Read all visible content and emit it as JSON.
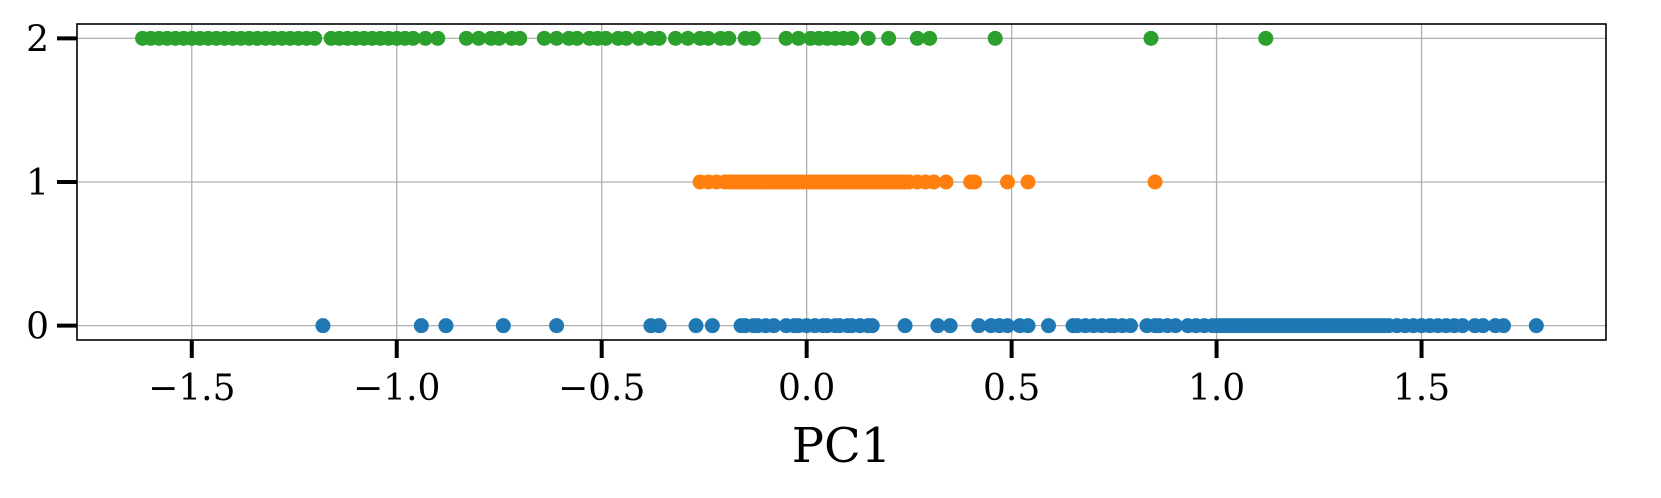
{
  "chart_data": {
    "type": "scatter",
    "title": "",
    "xlabel": "PC1",
    "ylabel": "",
    "xlim": [
      -1.78,
      1.95
    ],
    "ylim": [
      -0.1,
      2.1
    ],
    "grid": true,
    "xticks": [
      -1.5,
      -1.0,
      -0.5,
      0.0,
      0.5,
      1.0,
      1.5
    ],
    "xtick_labels": [
      "−1.5",
      "−1.0",
      "−0.5",
      "0.0",
      "0.5",
      "1.0",
      "1.5"
    ],
    "yticks": [
      0,
      1,
      2
    ],
    "ytick_labels": [
      "0",
      "1",
      "2"
    ],
    "series": [
      {
        "color": "#1f77b4",
        "y": 0,
        "x": [
          -1.18,
          -0.94,
          -0.88,
          -0.74,
          -0.61,
          -0.38,
          -0.36,
          -0.27,
          -0.23,
          -0.16,
          -0.15,
          -0.13,
          -0.12,
          -0.1,
          -0.08,
          -0.05,
          -0.03,
          -0.02,
          0.0,
          0.02,
          0.04,
          0.05,
          0.07,
          0.08,
          0.1,
          0.11,
          0.13,
          0.15,
          0.16,
          0.24,
          0.32,
          0.35,
          0.42,
          0.45,
          0.47,
          0.49,
          0.52,
          0.54,
          0.59,
          0.65,
          0.66,
          0.68,
          0.7,
          0.72,
          0.74,
          0.75,
          0.77,
          0.79,
          0.83,
          0.85,
          0.86,
          0.88,
          0.9,
          0.93,
          0.95,
          0.97,
          0.99,
          1.0,
          1.01,
          1.02,
          1.03,
          1.04,
          1.05,
          1.06,
          1.07,
          1.08,
          1.09,
          1.1,
          1.11,
          1.12,
          1.13,
          1.14,
          1.15,
          1.16,
          1.17,
          1.18,
          1.19,
          1.2,
          1.21,
          1.22,
          1.23,
          1.24,
          1.25,
          1.26,
          1.27,
          1.28,
          1.29,
          1.3,
          1.31,
          1.32,
          1.33,
          1.34,
          1.35,
          1.36,
          1.37,
          1.38,
          1.39,
          1.4,
          1.41,
          1.42,
          1.44,
          1.46,
          1.48,
          1.5,
          1.52,
          1.54,
          1.56,
          1.58,
          1.6,
          1.63,
          1.65,
          1.68,
          1.7,
          1.78
        ]
      },
      {
        "color": "#ff7f0e",
        "y": 1,
        "x": [
          -0.26,
          -0.24,
          -0.22,
          -0.2,
          -0.19,
          -0.18,
          -0.17,
          -0.16,
          -0.15,
          -0.14,
          -0.13,
          -0.12,
          -0.11,
          -0.1,
          -0.09,
          -0.08,
          -0.07,
          -0.06,
          -0.05,
          -0.04,
          -0.03,
          -0.02,
          -0.01,
          0.0,
          0.01,
          0.02,
          0.03,
          0.04,
          0.05,
          0.06,
          0.07,
          0.08,
          0.09,
          0.1,
          0.11,
          0.12,
          0.13,
          0.14,
          0.15,
          0.16,
          0.17,
          0.18,
          0.19,
          0.2,
          0.21,
          0.22,
          0.23,
          0.24,
          0.25,
          0.27,
          0.29,
          0.31,
          0.34,
          0.4,
          0.41,
          0.49,
          0.54,
          0.85
        ]
      },
      {
        "color": "#2ca02c",
        "y": 2,
        "x": [
          -1.62,
          -1.6,
          -1.58,
          -1.56,
          -1.54,
          -1.52,
          -1.5,
          -1.48,
          -1.46,
          -1.44,
          -1.42,
          -1.4,
          -1.38,
          -1.36,
          -1.34,
          -1.32,
          -1.3,
          -1.28,
          -1.26,
          -1.24,
          -1.22,
          -1.2,
          -1.16,
          -1.14,
          -1.12,
          -1.1,
          -1.08,
          -1.06,
          -1.04,
          -1.02,
          -1.0,
          -0.98,
          -0.96,
          -0.93,
          -0.9,
          -0.83,
          -0.8,
          -0.77,
          -0.75,
          -0.72,
          -0.7,
          -0.64,
          -0.61,
          -0.58,
          -0.56,
          -0.53,
          -0.51,
          -0.49,
          -0.46,
          -0.44,
          -0.41,
          -0.38,
          -0.36,
          -0.32,
          -0.29,
          -0.26,
          -0.24,
          -0.21,
          -0.19,
          -0.15,
          -0.13,
          -0.05,
          -0.02,
          0.01,
          0.03,
          0.05,
          0.07,
          0.09,
          0.11,
          0.15,
          0.2,
          0.27,
          0.3,
          0.46,
          0.84,
          1.12
        ]
      }
    ]
  }
}
